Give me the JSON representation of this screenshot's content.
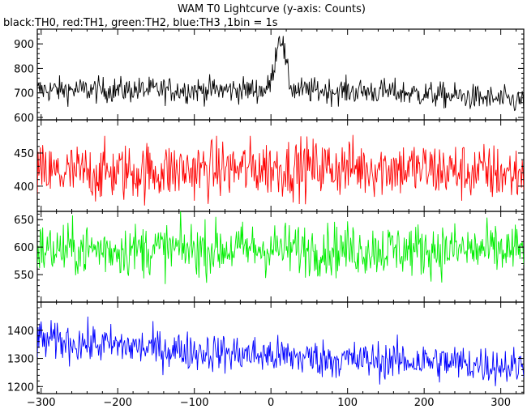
{
  "chart_data": {
    "type": "line",
    "title": "WAM T0 Lightcurve (y-axis: Counts)",
    "subtitle": "black:TH0, red:TH1, green:TH2, blue:TH3 ,1bin = 1s",
    "xlabel": "",
    "ylabel": "",
    "xlim": [
      -305,
      330
    ],
    "x_ticks": [
      -300,
      -200,
      -100,
      0,
      100,
      200,
      300
    ],
    "grid": false,
    "bin_seconds": 1,
    "panels": [
      {
        "name": "TH0",
        "color": "#000000",
        "ylim": [
          590,
          960
        ],
        "y_ticks": [
          600,
          700,
          800,
          900
        ],
        "baseline": [
          [
            -305,
            712
          ],
          [
            -100,
            712
          ],
          [
            0,
            712
          ],
          [
            150,
            705
          ],
          [
            250,
            685
          ],
          [
            330,
            665
          ]
        ],
        "burst": {
          "peak_x": 12,
          "peak_height": 220,
          "width": 9
        },
        "noise": 26
      },
      {
        "name": "TH1",
        "color": "#ff0000",
        "ylim": [
          362,
          500
        ],
        "y_ticks": [
          400,
          450
        ],
        "baseline": [
          [
            -305,
            418
          ],
          [
            -100,
            424
          ],
          [
            0,
            428
          ],
          [
            150,
            428
          ],
          [
            250,
            422
          ],
          [
            330,
            418
          ]
        ],
        "noise": 22
      },
      {
        "name": "TH2",
        "color": "#00ee00",
        "ylim": [
          500,
          665
        ],
        "y_ticks": [
          550,
          600,
          650
        ],
        "baseline": [
          [
            -305,
            595
          ],
          [
            0,
            597
          ],
          [
            330,
            594
          ]
        ],
        "noise": 24
      },
      {
        "name": "TH3",
        "color": "#0000ff",
        "ylim": [
          1175,
          1500
        ],
        "y_ticks": [
          1200,
          1300,
          1400
        ],
        "baseline": [
          [
            -305,
            1365
          ],
          [
            -200,
            1345
          ],
          [
            -100,
            1325
          ],
          [
            0,
            1310
          ],
          [
            100,
            1295
          ],
          [
            200,
            1290
          ],
          [
            330,
            1270
          ]
        ],
        "noise": 34
      }
    ]
  }
}
